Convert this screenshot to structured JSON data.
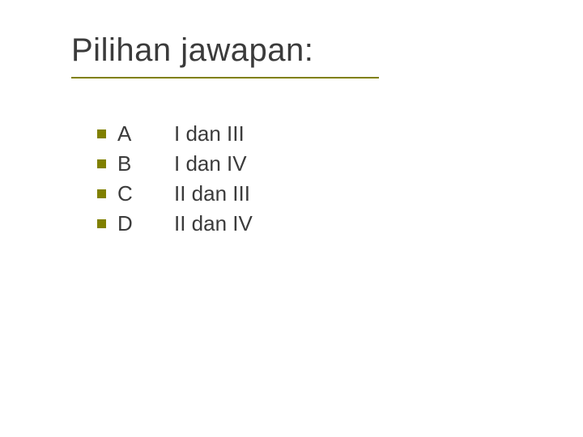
{
  "title": "Pilihan jawapan:",
  "title_color": "#3b3b3b",
  "title_fontsize": 40,
  "underline_color": "#808000",
  "underline_width": 380,
  "bullet_color": "#808000",
  "bullet_size": 11,
  "body_fontsize": 26,
  "body_color": "#3b3b3b",
  "options": [
    {
      "letter": "A",
      "answer": "I  dan III"
    },
    {
      "letter": "B",
      "answer": "I  dan IV"
    },
    {
      "letter": "C",
      "answer": "II dan  III"
    },
    {
      "letter": "D",
      "answer": "II dan IV"
    }
  ]
}
